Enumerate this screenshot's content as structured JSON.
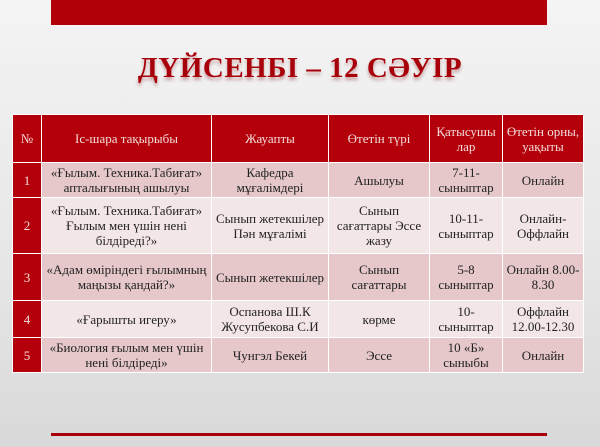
{
  "title": "ДҮЙСЕНБІ – 12 СӘУІР",
  "colors": {
    "accent": "#b3000a",
    "row_odd": "#e6c8cb",
    "row_even": "#f3e6e7"
  },
  "table": {
    "headers": [
      "№",
      "Іс-шара   тақырыбы",
      "Жауапты",
      "Өтетін түрі",
      "Қатысушы лар",
      "Өтетін орны, уақыты"
    ],
    "rows": [
      [
        "1",
        "«Ғылым. Техника.Табиғат» апталығының ашылуы",
        "Кафедра мұғалімдері",
        "Ашылуы",
        "7-11- сыныптар",
        "Онлайн"
      ],
      [
        "2",
        "«Ғылым. Техника.Табиғат» Ғылым мен үшін нені білдіреді?»",
        "Сынып жетекшілер Пән мұғалімі",
        "Сынып сағаттары Эссе жазу",
        "10-11- сыныптар",
        "Онлайн- Оффлайн"
      ],
      [
        "3",
        "«Адам өміріндегі ғылымның маңызы қандай?»",
        "Сынып жетекшілер",
        "Сынып сағаттары",
        "5-8 сыныптар",
        "Онлайн 8.00-8.30"
      ],
      [
        "4",
        "«Ғарышты игеру»",
        "Оспанова Ш.К Жусупбекова С.И",
        "көрме",
        "10- сыныптар",
        "Оффлайн 12.00-12.30"
      ],
      [
        "5",
        "«Биология ғылым мен үшін нені білдіреді»",
        "Чунгэл Бекей",
        "Эссе",
        "10 «Б» сыныбы",
        "Онлайн"
      ]
    ]
  }
}
